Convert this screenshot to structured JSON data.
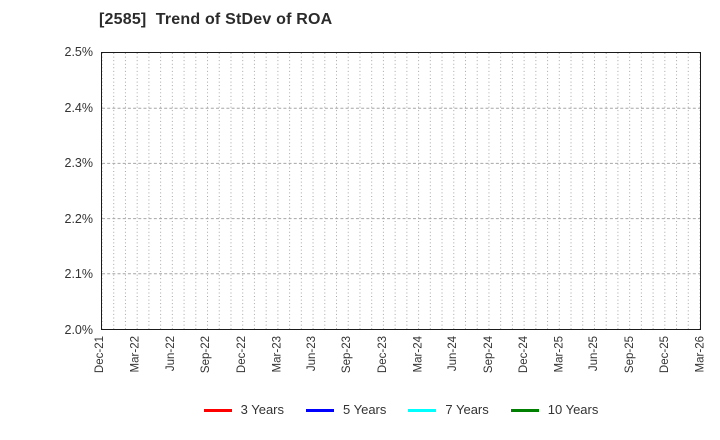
{
  "page": {
    "background": "#ffffff"
  },
  "colors": {
    "axis_border": "#1a1a1a",
    "grid_line": "#a6a6a6",
    "tick_text": "#333333",
    "title_text": "#2b2b2b"
  },
  "chart_data": {
    "type": "line",
    "title": "[2585]  Trend of StDev of ROA",
    "xlabel": "",
    "ylabel": "",
    "ylim": [
      2.0,
      2.5
    ],
    "y_tick_labels": [
      "2.0%",
      "2.1%",
      "2.2%",
      "2.3%",
      "2.4%",
      "2.5%"
    ],
    "x_tick_labels": [
      "Dec-21",
      "Mar-22",
      "Jun-22",
      "Sep-22",
      "Dec-22",
      "Mar-23",
      "Jun-23",
      "Sep-23",
      "Dec-23",
      "Mar-24",
      "Jun-24",
      "Sep-24",
      "Dec-24",
      "Mar-25",
      "Jun-25",
      "Sep-25",
      "Dec-25",
      "Mar-26"
    ],
    "x_tick_rotation_degrees": 90,
    "grid": {
      "visible": true,
      "vertical_style": "dotted",
      "horizontal_style": "dashed",
      "x_minor_divisions_per_interval": 3,
      "horizontal_lines_at": [
        "2.1%",
        "2.2%",
        "2.3%",
        "2.4%"
      ]
    },
    "legend": {
      "position": "bottom-center",
      "entries": [
        {
          "label": "3 Years",
          "color": "#ff0000"
        },
        {
          "label": "5 Years",
          "color": "#0000ff"
        },
        {
          "label": "7 Years",
          "color": "#00ffff"
        },
        {
          "label": "10 Years",
          "color": "#008000"
        }
      ]
    },
    "series": [
      {
        "name": "3 Years",
        "color": "#ff0000",
        "values": []
      },
      {
        "name": "5 Years",
        "color": "#0000ff",
        "values": []
      },
      {
        "name": "7 Years",
        "color": "#00ffff",
        "values": []
      },
      {
        "name": "10 Years",
        "color": "#008000",
        "values": []
      }
    ],
    "note": "plot area is empty - no data lines drawn"
  }
}
